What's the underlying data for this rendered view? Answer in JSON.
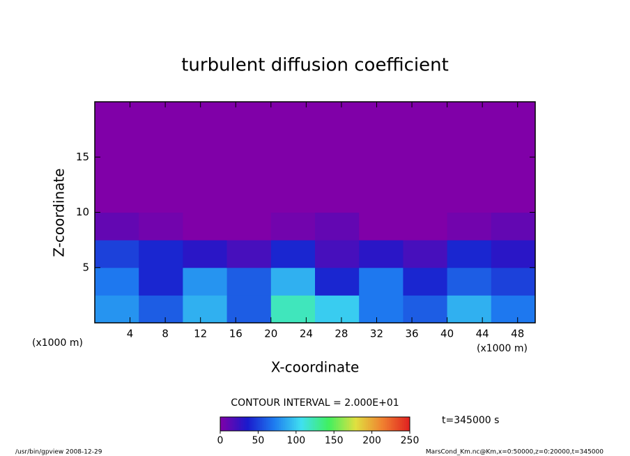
{
  "chart_data": {
    "type": "heatmap",
    "title": "turbulent diffusion coefficient",
    "xlabel": "X-coordinate",
    "ylabel": "Z-coordinate",
    "xunit": "(x1000 m)",
    "yunit": "(x1000 m)",
    "xlim": [
      0,
      50
    ],
    "ylim": [
      0,
      20
    ],
    "xticks": [
      4,
      8,
      12,
      16,
      20,
      24,
      28,
      32,
      36,
      40,
      44,
      48
    ],
    "yticks": [
      5,
      10,
      15
    ],
    "z": [
      [
        80,
        60,
        90,
        60,
        120,
        100,
        70,
        60,
        90,
        70
      ],
      [
        70,
        40,
        80,
        60,
        90,
        40,
        70,
        40,
        60,
        50
      ],
      [
        50,
        40,
        30,
        20,
        40,
        20,
        30,
        20,
        40,
        30
      ],
      [
        10,
        5,
        0,
        0,
        5,
        10,
        0,
        0,
        5,
        10
      ],
      [
        0,
        0,
        0,
        0,
        0,
        0,
        0,
        0,
        0,
        0
      ],
      [
        0,
        0,
        0,
        0,
        0,
        0,
        0,
        0,
        0,
        0
      ],
      [
        0,
        0,
        0,
        0,
        0,
        0,
        0,
        0,
        0,
        0
      ],
      [
        0,
        0,
        0,
        0,
        0,
        0,
        0,
        0,
        0,
        0
      ]
    ],
    "colormap": [
      "#8000a8",
      "#1a1acc",
      "#1e7cf0",
      "#40e0f0",
      "#40f060",
      "#e0e040",
      "#f08030",
      "#e02020"
    ],
    "clim": [
      0,
      250
    ],
    "cticks": [
      0,
      50,
      100,
      150,
      200,
      250
    ],
    "contour_interval": "CONTOUR INTERVAL = 2.000E+01",
    "time_label": "t=345000 s",
    "footer_left": "/usr/bin/gpview  2008-12-29",
    "footer_right": "MarsCond_Km.nc@Km,x=0:50000,z=0:20000,t=345000"
  }
}
